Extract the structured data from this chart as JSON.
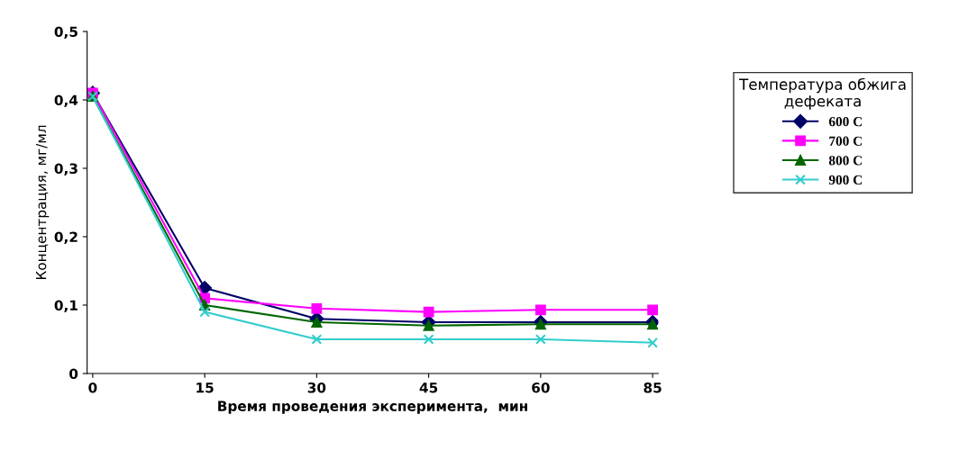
{
  "chart_data": {
    "type": "line",
    "xlabel": "Время проведения эксперимента,  мин",
    "ylabel": "Концентрация, мг/мл",
    "legend_title": "Температура обжига\nдефеката",
    "categories": [
      "0",
      "15",
      "30",
      "45",
      "60",
      "85"
    ],
    "ylim": [
      0,
      0.5
    ],
    "yticks": [
      0,
      {
        "value": 0.1,
        "label": "0,1"
      },
      {
        "value": 0.2,
        "label": "0,2"
      },
      {
        "value": 0.3,
        "label": "0,3"
      },
      {
        "value": 0.4,
        "label": "0,4"
      },
      {
        "value": 0.5,
        "label": "0,5"
      }
    ],
    "grid": false,
    "legend": "right",
    "line_style": "solid",
    "series": [
      {
        "name": "600 C",
        "color": "#000066",
        "marker": "diamond",
        "values": [
          0.41,
          0.125,
          0.08,
          0.075,
          0.075,
          0.075
        ]
      },
      {
        "name": "700 C",
        "color": "#ff00ff",
        "marker": "square",
        "values": [
          0.41,
          0.11,
          0.095,
          0.09,
          0.093,
          0.093
        ]
      },
      {
        "name": "800 C",
        "color": "#006600",
        "marker": "triangle",
        "values": [
          0.405,
          0.1,
          0.075,
          0.07,
          0.072,
          0.072
        ]
      },
      {
        "name": "900 C",
        "color": "#33cccc",
        "marker": "cross",
        "values": [
          0.405,
          0.09,
          0.05,
          0.05,
          0.05,
          0.045
        ]
      }
    ]
  }
}
